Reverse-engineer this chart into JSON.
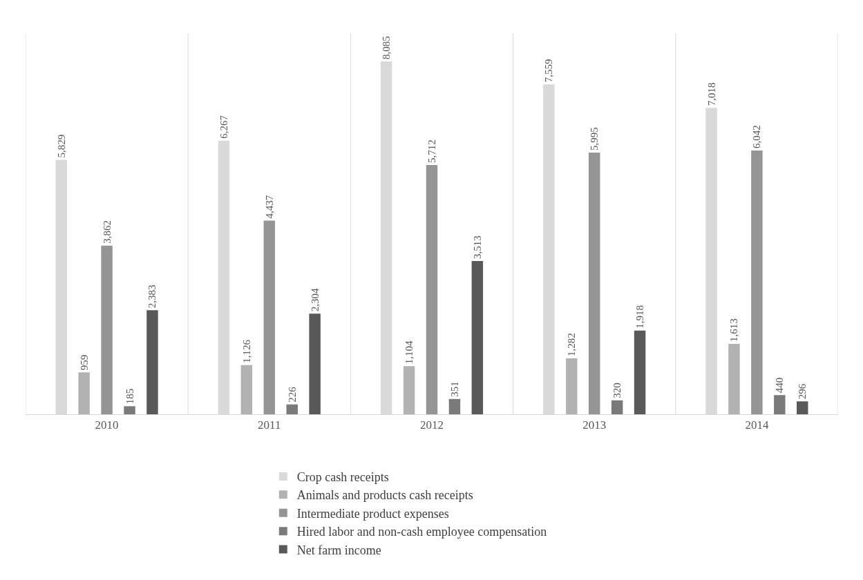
{
  "chart_data": {
    "type": "bar",
    "categories": [
      "2010",
      "2011",
      "2012",
      "2013",
      "2014"
    ],
    "series": [
      {
        "name": "Crop cash receipts",
        "color": "#d9d9d9",
        "values": [
          5829,
          6267,
          8085,
          7559,
          7018
        ],
        "value_labels": [
          "5,829",
          "6,267",
          "8,085",
          "7,559",
          "7,018"
        ]
      },
      {
        "name": "Animals and products cash receipts",
        "color": "#b2b2b2",
        "values": [
          959,
          1126,
          1104,
          1282,
          1613
        ],
        "value_labels": [
          "959",
          "1,126",
          "1,104",
          "1,282",
          "1,613"
        ]
      },
      {
        "name": "Intermediate product expenses",
        "color": "#959595",
        "values": [
          3862,
          4437,
          5712,
          5995,
          6042
        ],
        "value_labels": [
          "3,862",
          "4,437",
          "5,712",
          "5,995",
          "6,042"
        ]
      },
      {
        "name": "Hired labor and non-cash employee compensation",
        "color": "#7a7a7a",
        "values": [
          185,
          226,
          351,
          320,
          440
        ],
        "value_labels": [
          "185",
          "226",
          "351",
          "320",
          "440"
        ]
      },
      {
        "name": "Net farm income",
        "color": "#595959",
        "values": [
          2383,
          2304,
          3513,
          1918,
          296
        ],
        "value_labels": [
          "2,383",
          "2,304",
          "3,513",
          "1,918",
          "296"
        ]
      }
    ],
    "grid": "x",
    "legend": "bottom",
    "tick_labels": "x"
  }
}
